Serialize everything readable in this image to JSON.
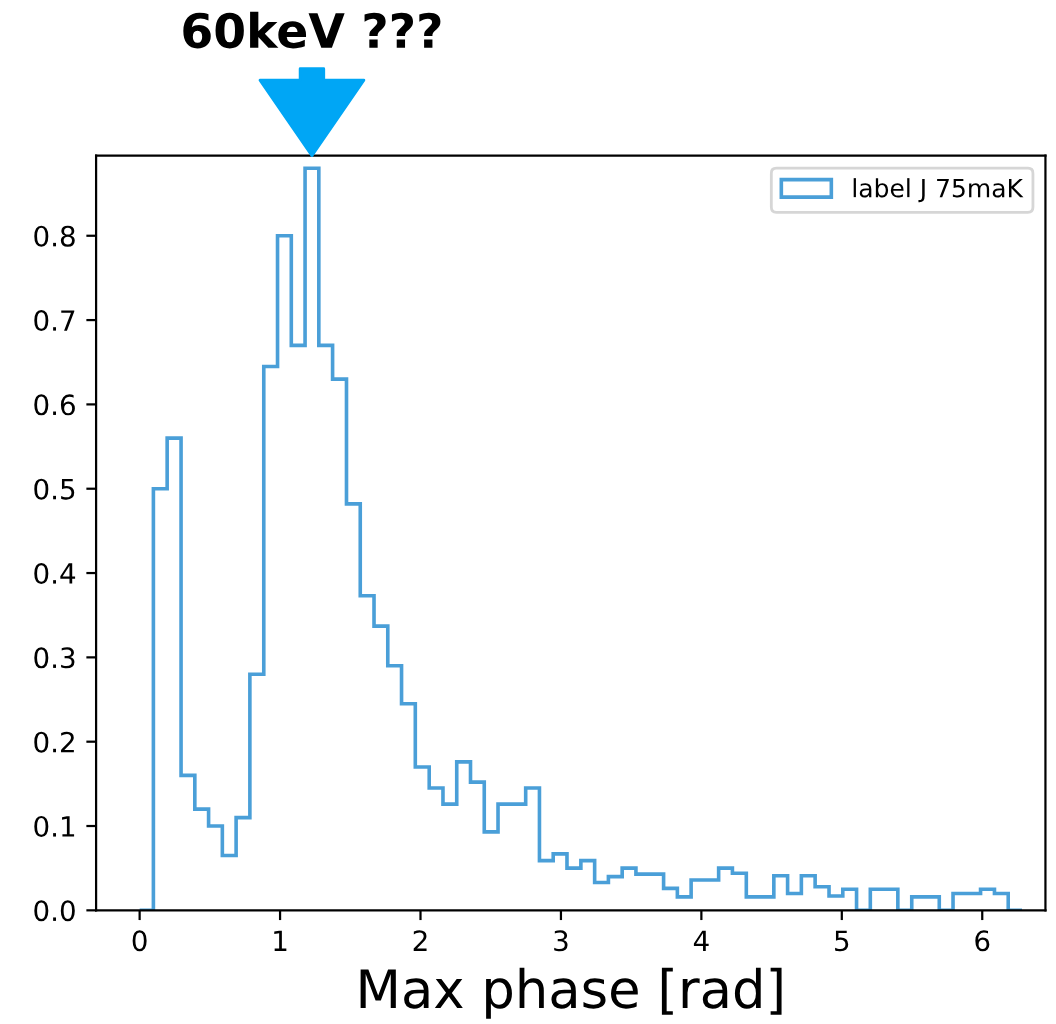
{
  "chart_data": {
    "type": "histogram",
    "bins": [
      0,
      0.098,
      0.196,
      0.295,
      0.393,
      0.491,
      0.589,
      0.687,
      0.785,
      0.884,
      0.982,
      1.08,
      1.178,
      1.276,
      1.374,
      1.473,
      1.571,
      1.669,
      1.767,
      1.865,
      1.963,
      2.062,
      2.16,
      2.258,
      2.356,
      2.454,
      2.552,
      2.651,
      2.749,
      2.847,
      2.945,
      3.043,
      3.142,
      3.24,
      3.338,
      3.436,
      3.534,
      3.632,
      3.731,
      3.829,
      3.927,
      4.025,
      4.123,
      4.221,
      4.32,
      4.418,
      4.516,
      4.614,
      4.712,
      4.81,
      4.909,
      5.007,
      5.105,
      5.203,
      5.301,
      5.399,
      5.498,
      5.596,
      5.694,
      5.792,
      5.89,
      5.988,
      6.087,
      6.185,
      6.283
    ],
    "series": [
      {
        "name": "label J 75maK",
        "color": "#4a9fd8",
        "values": [
          0,
          0.5,
          0.56,
          0.16,
          0.12,
          0.1,
          0.065,
          0.11,
          0.28,
          0.645,
          0.8,
          0.67,
          0.88,
          0.67,
          0.63,
          0.482,
          0.373,
          0.337,
          0.29,
          0.245,
          0.17,
          0.145,
          0.126,
          0.176,
          0.152,
          0.093,
          0.126,
          0.126,
          0.145,
          0.059,
          0.067,
          0.05,
          0.059,
          0.033,
          0.04,
          0.05,
          0.043,
          0.043,
          0.026,
          0.016,
          0.036,
          0.036,
          0.05,
          0.044,
          0.016,
          0.016,
          0.041,
          0.02,
          0.041,
          0.028,
          0.017,
          0.025,
          0,
          0.025,
          0.025,
          0,
          0.016,
          0.016,
          0,
          0.02,
          0.02,
          0.025,
          0.02,
          0
        ]
      }
    ],
    "xlabel": "Max phase [rad]",
    "annotations": [
      "60keV ???"
    ],
    "xlim": [
      -0.31,
      6.45
    ],
    "ylim": [
      0,
      0.895
    ],
    "xticks": [
      0,
      1,
      2,
      3,
      4,
      5,
      6
    ],
    "yticks": [
      {
        "value": 0,
        "label": "0.0"
      },
      0.1,
      0.2,
      0.3,
      0.4,
      0.5,
      0.6,
      0.7,
      0.8
    ],
    "grid": false,
    "legend": "top right"
  }
}
